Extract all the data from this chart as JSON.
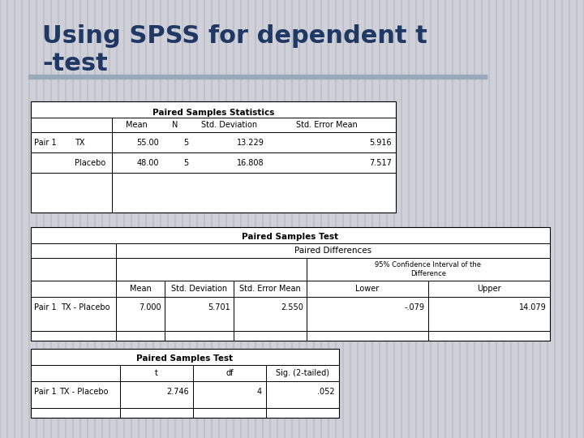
{
  "title_line1": "Using SPSS for dependent t",
  "title_line2": "-test",
  "title_color": "#1F3864",
  "bg_color": "#D0D0D8",
  "bg_stripe_color": "#C0C0C8",
  "table1_title": "Paired Samples Statistics",
  "table1_rows": [
    [
      "Pair 1",
      "TX",
      "55.00",
      "5",
      "13.229",
      "5.916"
    ],
    [
      "",
      "Placebo",
      "48.00",
      "5",
      "16.808",
      "7.517"
    ]
  ],
  "table2_title": "Paired Samples Test",
  "table2_sub1": "Paired Differences",
  "table2_sub2": "95% Confidence Interval of the\nDifference",
  "table2_row": [
    "Pair 1",
    "TX - Placebo",
    "7.000",
    "5.701",
    "2.550",
    "-.079",
    "14.079"
  ],
  "table3_title": "Paired Samples Test",
  "table3_row": [
    "Pair 1",
    "TX - Placebo",
    "2.746",
    "4",
    ".052"
  ]
}
